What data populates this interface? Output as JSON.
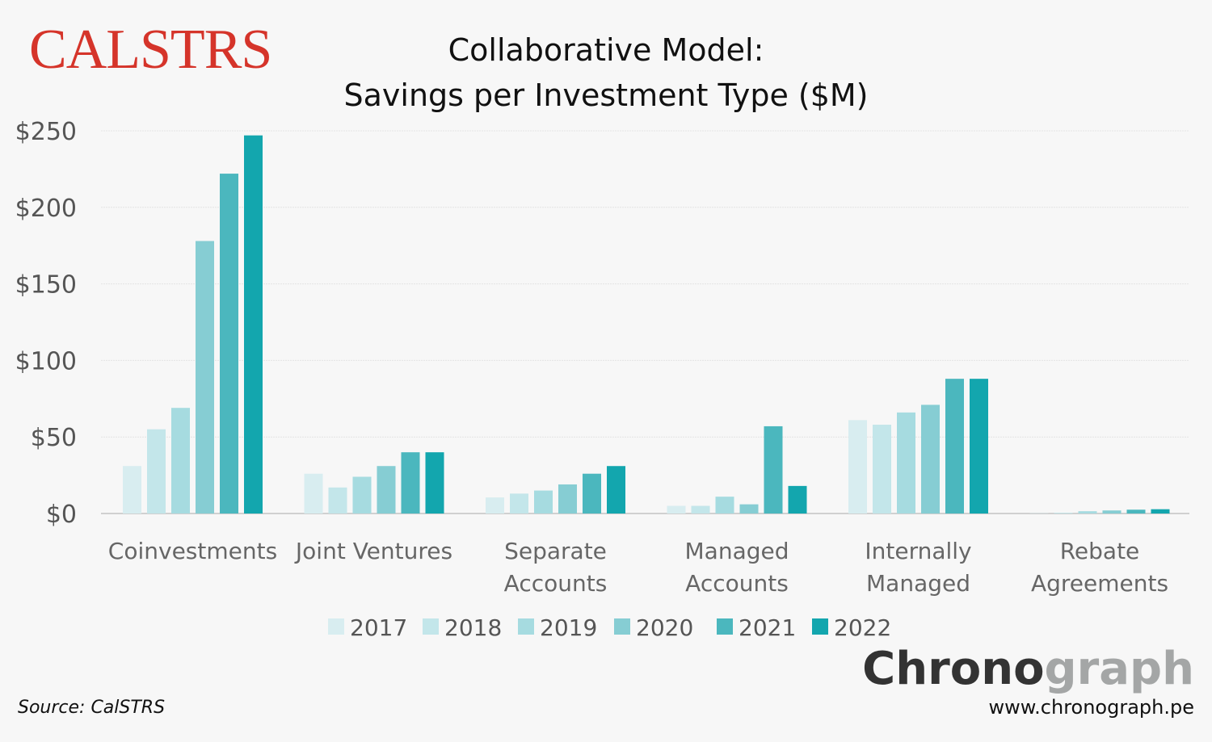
{
  "logo": "CALSTRS",
  "chart_data": {
    "type": "bar",
    "title": "Collaborative Model:",
    "subtitle": "Savings per Investment Type ($M)",
    "categories": [
      [
        "Coinvestments"
      ],
      [
        "Joint Ventures"
      ],
      [
        "Separate",
        "Accounts"
      ],
      [
        "Managed",
        "Accounts"
      ],
      [
        "Internally",
        "Managed"
      ],
      [
        "Rebate",
        "Agreements"
      ]
    ],
    "series": [
      {
        "name": "2017",
        "color": "#d8edf0",
        "values": [
          31,
          26,
          10.5,
          5,
          61,
          0.2
        ]
      },
      {
        "name": "2018",
        "color": "#c3e6ea",
        "values": [
          55,
          17,
          13,
          5,
          58,
          0.5
        ]
      },
      {
        "name": "2019",
        "color": "#a6dbe0",
        "values": [
          69,
          24,
          15,
          11,
          66,
          1.5
        ]
      },
      {
        "name": "2020",
        "color": "#86cdd3",
        "values": [
          178,
          31,
          19,
          6,
          71,
          2
        ]
      },
      {
        "name": "2021",
        "color": "#4bb7be",
        "values": [
          222,
          40,
          26,
          57,
          88,
          2.5
        ]
      },
      {
        "name": "2022",
        "color": "#13a6ae",
        "values": [
          247,
          40,
          31,
          18,
          88,
          2.8
        ]
      }
    ],
    "ylim": [
      0,
      250
    ],
    "yticks": [
      "$0",
      "$50",
      "$100",
      "$150",
      "$200",
      "$250"
    ],
    "grid": true,
    "legend": "bottom"
  },
  "source": "Source: CalSTRS",
  "brand": {
    "part1": "Chrono",
    "part2": "graph",
    "url": "www.chronograph.pe"
  }
}
